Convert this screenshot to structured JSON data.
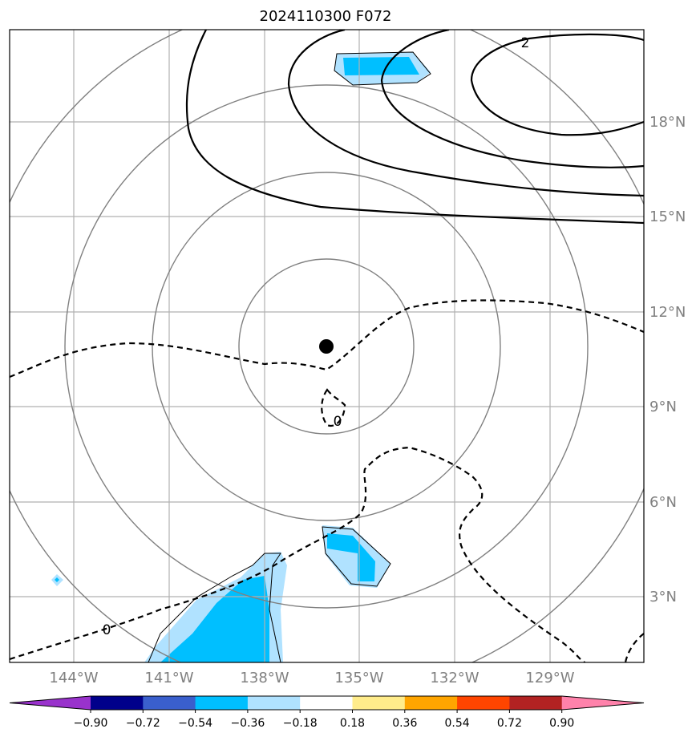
{
  "chart_data": {
    "type": "contour_map",
    "title": "2024110300 F072",
    "x_tick_labels": [
      "144°W",
      "141°W",
      "138°W",
      "135°W",
      "132°W",
      "129°W"
    ],
    "y_tick_labels": [
      "18°N",
      "15°N",
      "12°N",
      "9°N",
      "6°N",
      "3°N"
    ],
    "x_ticks_deg": [
      -144,
      -141,
      -138,
      -135,
      -132,
      -129
    ],
    "y_ticks_deg": [
      18,
      15,
      12,
      9,
      6,
      3
    ],
    "xlim_deg": [
      -146.4,
      -126.3
    ],
    "ylim_deg": [
      1.0,
      21.0
    ],
    "center_marker": {
      "lon": -136.0,
      "lat": 10.9
    },
    "range_rings_deg": [
      2.75,
      5.5,
      8.25,
      11.0
    ],
    "contour_labels": [
      "2",
      "0",
      "0"
    ],
    "colorbar": {
      "levels": [
        "−0.90",
        "−0.72",
        "−0.54",
        "−0.36",
        "−0.18",
        "0.18",
        "0.36",
        "0.54",
        "0.72",
        "0.90"
      ],
      "colors": [
        "#9932cc",
        "#00008b",
        "#3a5fcd",
        "#00bfff",
        "#b0e2ff",
        "#ffffff",
        "#ffec8b",
        "#ffa500",
        "#ff4500",
        "#b22222",
        "#ff82ab"
      ],
      "extend": "both"
    },
    "filled_regions_color": [
      "#00bfff",
      "#b0e2ff"
    ]
  }
}
